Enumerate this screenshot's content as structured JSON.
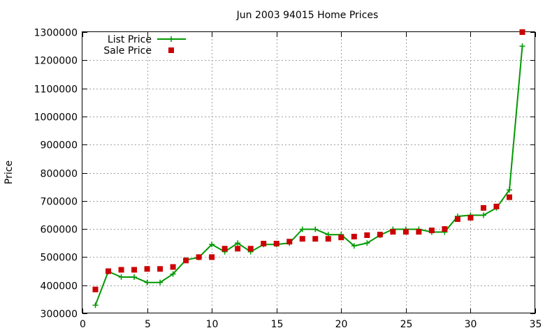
{
  "chart_data": {
    "type": "scatter",
    "title": "Jun 2003 94015 Home Prices",
    "xlabel": "",
    "ylabel": "Price",
    "xlim": [
      0,
      35
    ],
    "ylim": [
      300000,
      1300000
    ],
    "x_ticks": [
      0,
      5,
      10,
      15,
      20,
      25,
      30,
      35
    ],
    "y_ticks": [
      300000,
      400000,
      500000,
      600000,
      700000,
      800000,
      900000,
      1000000,
      1100000,
      1200000,
      1300000
    ],
    "grid": true,
    "legend_position": "top-left",
    "series": [
      {
        "name": "List Price",
        "style": "linespoints",
        "marker": "plus",
        "color": "#009900",
        "x": [
          1,
          2,
          3,
          4,
          5,
          6,
          7,
          8,
          9,
          10,
          11,
          12,
          13,
          14,
          15,
          16,
          17,
          18,
          19,
          20,
          21,
          22,
          23,
          24,
          25,
          26,
          27,
          28,
          29,
          30,
          31,
          32,
          33,
          34
        ],
        "values": [
          329000,
          449000,
          429000,
          429000,
          410000,
          410000,
          440000,
          490000,
          499000,
          545000,
          519000,
          550000,
          519000,
          545000,
          545000,
          550000,
          599000,
          599000,
          580000,
          580000,
          540000,
          550000,
          578000,
          599000,
          599000,
          599000,
          589000,
          589000,
          645000,
          649000,
          649000,
          675000,
          739000,
          1250000
        ]
      },
      {
        "name": "Sale Price",
        "style": "points",
        "marker": "square",
        "color": "#cc0000",
        "x": [
          1,
          2,
          3,
          4,
          5,
          6,
          7,
          8,
          9,
          10,
          11,
          12,
          13,
          14,
          15,
          16,
          17,
          18,
          19,
          20,
          21,
          22,
          23,
          24,
          25,
          26,
          27,
          28,
          29,
          30,
          31,
          32,
          33,
          34
        ],
        "values": [
          385000,
          450000,
          455000,
          455000,
          458000,
          458000,
          465000,
          488000,
          500000,
          500000,
          530000,
          530000,
          530000,
          548000,
          548000,
          555000,
          565000,
          565000,
          565000,
          570000,
          573000,
          578000,
          580000,
          590000,
          590000,
          590000,
          595000,
          600000,
          635000,
          640000,
          675000,
          680000,
          713000,
          1300000
        ]
      }
    ]
  }
}
